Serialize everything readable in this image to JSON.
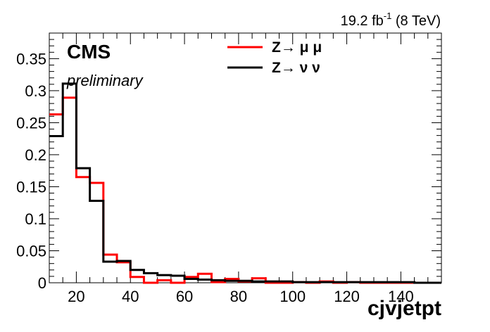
{
  "chart_data": {
    "type": "histogram",
    "title": "",
    "xlabel": "cjvjetpt",
    "ylabel": "",
    "xlim": [
      10,
      155
    ],
    "ylim": [
      0,
      0.39
    ],
    "bin_edges": [
      10,
      15,
      20,
      25,
      30,
      35,
      40,
      45,
      50,
      55,
      60,
      65,
      70,
      75,
      80,
      85,
      90,
      95,
      100,
      105,
      110,
      115,
      120,
      125,
      130,
      135,
      140,
      145,
      150,
      155
    ],
    "x_ticks": [
      20,
      40,
      60,
      80,
      100,
      120,
      140
    ],
    "y_ticks": [
      0,
      0.05,
      0.1,
      0.15,
      0.2,
      0.25,
      0.3,
      0.35
    ],
    "y_tick_labels": [
      "0",
      "0.05",
      "0.1",
      "0.15",
      "0.2",
      "0.25",
      "0.3",
      "0.35"
    ],
    "grid": false,
    "legend_position": "top-center",
    "series": [
      {
        "name": "Z→ μ μ",
        "color": "#ff0000",
        "values": [
          0.263,
          0.289,
          0.165,
          0.156,
          0.044,
          0.032,
          0.009,
          0.0,
          0.004,
          0.0,
          0.009,
          0.014,
          0.001,
          0.006,
          0.002,
          0.007,
          0.0,
          0.0,
          0.001,
          0.0,
          0.002,
          0.0,
          0.001,
          0.0,
          0.0,
          0.0,
          0.0,
          0.0,
          0.0
        ]
      },
      {
        "name": "Z→ ν ν",
        "color": "#000000",
        "values": [
          0.229,
          0.311,
          0.179,
          0.128,
          0.033,
          0.034,
          0.02,
          0.015,
          0.012,
          0.011,
          0.006,
          0.005,
          0.004,
          0.003,
          0.003,
          0.002,
          0.002,
          0.002,
          0.001,
          0.001,
          0.001,
          0.001,
          0.001,
          0.001,
          0.001,
          0.001,
          0.001,
          0.0,
          0.0
        ]
      }
    ],
    "annotations": {
      "lumi_main": "19.2 fb",
      "lumi_sup": "-1",
      "lumi_energy": " (8 TeV)",
      "experiment": "CMS",
      "status": "preliminary"
    }
  }
}
